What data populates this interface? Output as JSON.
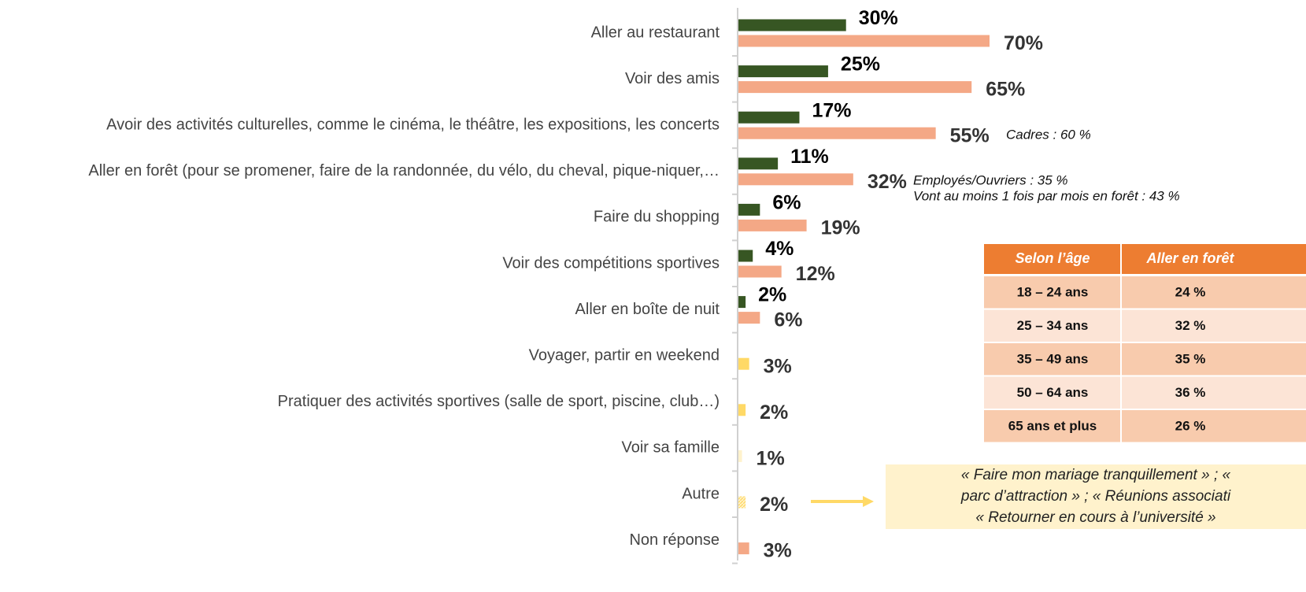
{
  "chart_data": {
    "type": "bar",
    "orientation": "horizontal",
    "categories": [
      "Aller au restaurant",
      "Voir des amis",
      "Avoir des activités culturelles, comme le cinéma, le théâtre, les expositions, les concerts",
      "Aller en forêt (pour se promener, faire de la randonnée, du vélo, du cheval, pique-niquer,…",
      "Faire du shopping",
      "Voir des compétitions sportives",
      "Aller en boîte de nuit",
      "Voyager, partir en weekend",
      "Pratiquer des activités sportives (salle de sport, piscine, club…)",
      "Voir sa famille",
      "Autre",
      "Non réponse"
    ],
    "xlim": [
      0,
      70
    ],
    "series": [
      {
        "color": "#375623",
        "values": [
          30,
          25,
          17,
          11,
          6,
          4,
          2,
          null,
          null,
          null,
          null,
          null
        ],
        "value_labels": [
          "30%",
          "25%",
          "17%",
          "11%",
          "6%",
          "4%",
          "2%",
          null,
          null,
          null,
          null,
          null
        ]
      },
      {
        "color": "#f4a886",
        "values": [
          70,
          65,
          55,
          32,
          19,
          12,
          6,
          null,
          null,
          null,
          null,
          3
        ],
        "value_labels": [
          "70%",
          "65%",
          "55%",
          "32%",
          "19%",
          "12%",
          "6%",
          null,
          null,
          null,
          null,
          "3%"
        ]
      },
      {
        "colors": [
          null,
          null,
          null,
          null,
          null,
          null,
          null,
          "#ffd966",
          "#ffd966",
          "#fff2cc",
          "url(#hatch)",
          null
        ],
        "values": [
          null,
          null,
          null,
          null,
          null,
          null,
          null,
          3,
          2,
          1,
          2,
          null
        ],
        "value_labels": [
          null,
          null,
          null,
          null,
          null,
          null,
          null,
          "3%",
          "2%",
          "1%",
          "2%",
          null
        ]
      }
    ],
    "annotations": [
      "Cadres : 60 %",
      "Employés/Ouvriers : 35 %",
      "Vont au moins 1 fois par mois en forêt : 43 %"
    ],
    "table": {
      "header": [
        "Selon l’âge",
        "Aller en forêt"
      ],
      "rows": [
        [
          "18 – 24 ans",
          "24 %"
        ],
        [
          "25 – 34 ans",
          "32 %"
        ],
        [
          "35 – 49 ans",
          "35 %"
        ],
        [
          "50 – 64 ans",
          "36 %"
        ],
        [
          "65 ans et plus",
          "26 %"
        ]
      ]
    },
    "quote": [
      "« Faire mon mariage tranquillement » ; «",
      "parc d’attraction » ; « Réunions associati",
      "« Retourner en cours à l’université »"
    ]
  }
}
